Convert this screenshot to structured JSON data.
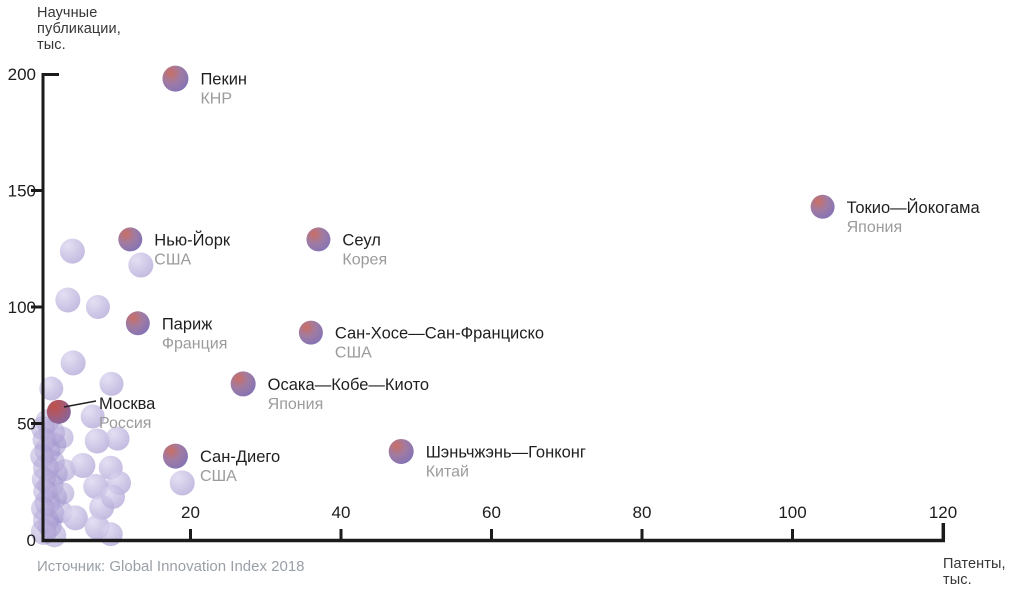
{
  "y_axis": {
    "title_lines": [
      "Научные",
      "публикации,",
      "тыс."
    ]
  },
  "x_axis": {
    "title_lines": [
      "Патенты,",
      "тыс."
    ]
  },
  "source": "Источник: Global Innovation Index 2018",
  "colors": {
    "axis": "#1b1b1b",
    "tick_label": "#1d1d1d",
    "city_label": "#1f1f1f",
    "country_label": "#9b9b9b",
    "axis_title": "#363636",
    "source_text": "#9aa0a7",
    "city_red": "#ca6e63",
    "city_purple": "#8072b8",
    "moscow_red": "#bf5149",
    "moscow_purple": "#7d68a8",
    "light_hi": "#ddd7f0",
    "light_lo": "#b1a5d6",
    "cluster_hi": "#c0b5de",
    "cluster_lo": "#9184c6"
  },
  "chart_data": {
    "type": "scatter",
    "title": "",
    "xlabel": "Патенты, тыс.",
    "ylabel": "Научные публикации, тыс.",
    "xlim": [
      0,
      120
    ],
    "ylim": [
      0,
      200
    ],
    "x_ticks": [
      20,
      40,
      60,
      80,
      100,
      120
    ],
    "y_ticks": [
      0,
      50,
      100,
      150,
      200
    ],
    "grid": false,
    "legend": "none",
    "source": "Источник: Global Innovation Index 2018",
    "labeled_points": [
      {
        "city": "Пекин",
        "country": "КНР",
        "x": 18,
        "y": 198,
        "r": 13
      },
      {
        "city": "Токио—Йокогама",
        "country": "Япония",
        "x": 104,
        "y": 143,
        "r": 12
      },
      {
        "city": "Нью-Йорк",
        "country": "США",
        "x": 12,
        "y": 129,
        "r": 12
      },
      {
        "city": "Сеул",
        "country": "Корея",
        "x": 37,
        "y": 129,
        "r": 12
      },
      {
        "city": "Париж",
        "country": "Франция",
        "x": 13,
        "y": 93,
        "r": 12
      },
      {
        "city": "Сан-Хосе—Сан-Франциско",
        "country": "США",
        "x": 36,
        "y": 89,
        "r": 12
      },
      {
        "city": "Осака—Кобе—Киото",
        "country": "Япония",
        "x": 27,
        "y": 67,
        "r": 12.5
      },
      {
        "city": "Москва",
        "country": "Россия",
        "x": 2.5,
        "y": 55,
        "r": 12,
        "callout": true
      },
      {
        "city": "Сан-Диего",
        "country": "США",
        "x": 18,
        "y": 36,
        "r": 12.5
      },
      {
        "city": "Шэньчжэнь—Гонконг",
        "country": "Китай",
        "x": 48,
        "y": 38,
        "r": 12.5
      }
    ],
    "background_points": {
      "light": [
        {
          "x": 4.3,
          "y": 124,
          "r": 12.5
        },
        {
          "x": 13.4,
          "y": 118,
          "r": 12.5
        },
        {
          "x": 3.7,
          "y": 103,
          "r": 12.5
        },
        {
          "x": 7.7,
          "y": 100,
          "r": 12
        },
        {
          "x": 4.4,
          "y": 76,
          "r": 12.5
        },
        {
          "x": 9.5,
          "y": 67,
          "r": 12
        },
        {
          "x": 1.5,
          "y": 65,
          "r": 12
        },
        {
          "x": 7.0,
          "y": 53,
          "r": 12
        },
        {
          "x": 7.6,
          "y": 42.5,
          "r": 12.5
        },
        {
          "x": 10.3,
          "y": 43.5,
          "r": 12
        },
        {
          "x": 5.7,
          "y": 32,
          "r": 12.5
        },
        {
          "x": 9.4,
          "y": 31,
          "r": 12
        },
        {
          "x": 10.5,
          "y": 24.5,
          "r": 12
        },
        {
          "x": 7.4,
          "y": 23,
          "r": 12.5
        },
        {
          "x": 8.2,
          "y": 14,
          "r": 12.5
        },
        {
          "x": 9.7,
          "y": 18.5,
          "r": 12
        },
        {
          "x": 4.7,
          "y": 9.5,
          "r": 12.5
        },
        {
          "x": 7.6,
          "y": 5.5,
          "r": 12.5
        },
        {
          "x": 9.4,
          "y": 2.5,
          "r": 12
        },
        {
          "x": 18.9,
          "y": 24.5,
          "r": 12.5
        }
      ],
      "cluster": [
        {
          "x": 1.0,
          "y": 51,
          "r": 12
        },
        {
          "x": 0.4,
          "y": 48,
          "r": 12
        },
        {
          "x": 1.6,
          "y": 46,
          "r": 13
        },
        {
          "x": 0.6,
          "y": 43,
          "r": 12
        },
        {
          "x": 1.9,
          "y": 41,
          "r": 12
        },
        {
          "x": 1.0,
          "y": 38.5,
          "r": 13
        },
        {
          "x": 0.3,
          "y": 36,
          "r": 12
        },
        {
          "x": 1.7,
          "y": 33.5,
          "r": 12
        },
        {
          "x": 0.8,
          "y": 31,
          "r": 13
        },
        {
          "x": 2.1,
          "y": 28.5,
          "r": 12
        },
        {
          "x": 0.5,
          "y": 26,
          "r": 12
        },
        {
          "x": 1.4,
          "y": 23.5,
          "r": 13
        },
        {
          "x": 0.7,
          "y": 21,
          "r": 12
        },
        {
          "x": 2.0,
          "y": 18.5,
          "r": 12
        },
        {
          "x": 1.0,
          "y": 16,
          "r": 13
        },
        {
          "x": 0.4,
          "y": 13.5,
          "r": 12
        },
        {
          "x": 1.7,
          "y": 11,
          "r": 12
        },
        {
          "x": 0.8,
          "y": 8.5,
          "r": 13
        },
        {
          "x": 1.3,
          "y": 6,
          "r": 12
        },
        {
          "x": 0.5,
          "y": 3.5,
          "r": 13
        },
        {
          "x": 1.9,
          "y": 2,
          "r": 12
        },
        {
          "x": 3.0,
          "y": 44,
          "r": 11
        },
        {
          "x": 3.3,
          "y": 30,
          "r": 11
        },
        {
          "x": 3.1,
          "y": 20,
          "r": 11
        },
        {
          "x": 2.9,
          "y": 12,
          "r": 11
        }
      ]
    }
  }
}
